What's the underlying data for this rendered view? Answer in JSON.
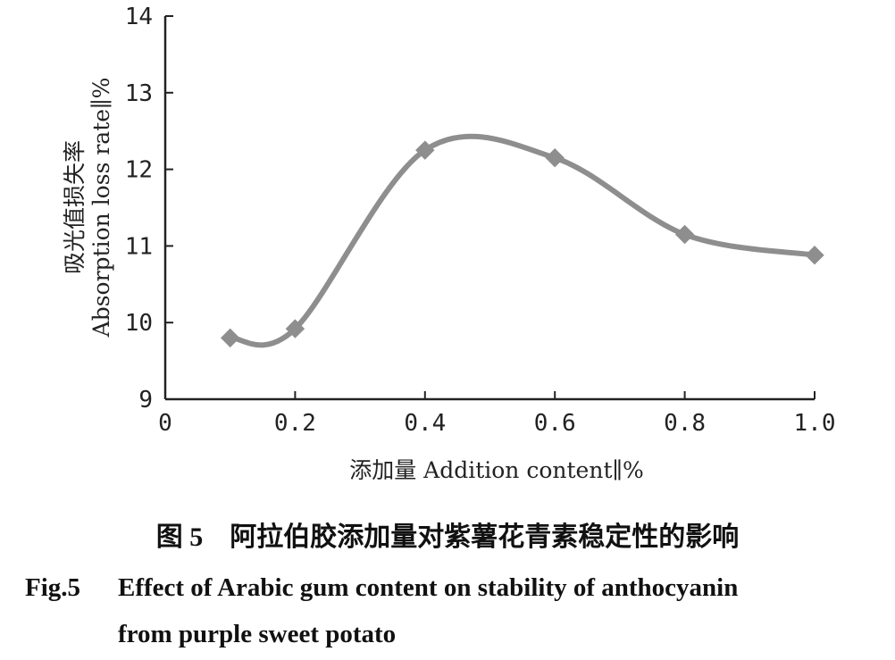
{
  "chart_data": {
    "type": "line",
    "x": [
      0.1,
      0.2,
      0.4,
      0.6,
      0.8,
      1.0
    ],
    "series": [
      {
        "values": [
          9.8,
          9.92,
          12.25,
          12.15,
          11.15,
          10.88
        ],
        "color": "#8e8e8e"
      }
    ],
    "xlabel": "添加量 Addition content∥%",
    "ylabel_cn": "吸光值损失率",
    "ylabel_en": "Absorption loss rate∥%",
    "xlim": [
      0,
      1.0
    ],
    "ylim": [
      9,
      14
    ],
    "x_ticks": [
      "0",
      "0.2",
      "0.4",
      "0.6",
      "0.8",
      "1.0"
    ],
    "y_ticks": [
      "9",
      "10",
      "11",
      "12",
      "13",
      "14"
    ],
    "grid": false,
    "smooth": true,
    "marker": "diamond"
  },
  "caption": {
    "cn": "图 5　阿拉伯胶添加量对紫薯花青素稳定性的影响",
    "en_label": "Fig.5",
    "en_line1": "Effect of Arabic gum content on stability of anthocyanin",
    "en_line2": "from purple sweet potato"
  }
}
